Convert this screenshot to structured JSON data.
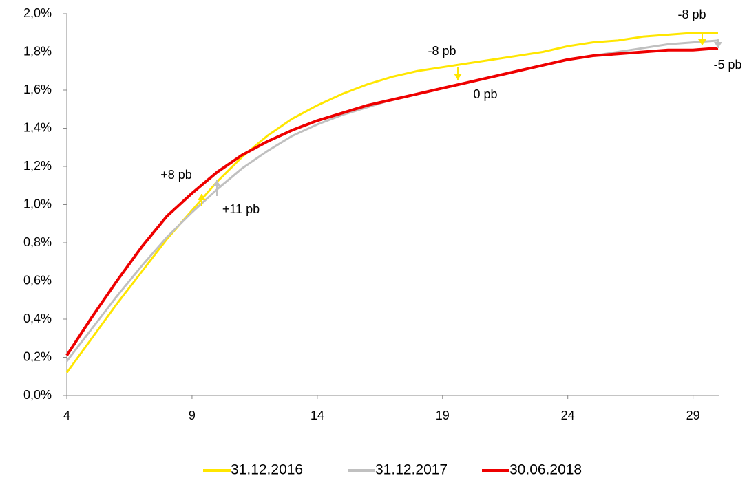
{
  "chart_data": {
    "type": "line",
    "x": [
      4,
      5,
      6,
      7,
      8,
      9,
      10,
      11,
      12,
      13,
      14,
      15,
      16,
      17,
      18,
      19,
      20,
      21,
      22,
      23,
      24,
      25,
      26,
      27,
      28,
      29,
      30
    ],
    "series": [
      {
        "name": "31.12.2016",
        "color": "#ffe600",
        "values": [
          0.12,
          0.3,
          0.48,
          0.65,
          0.82,
          0.97,
          1.12,
          1.25,
          1.36,
          1.45,
          1.52,
          1.58,
          1.63,
          1.67,
          1.7,
          1.72,
          1.74,
          1.76,
          1.78,
          1.8,
          1.83,
          1.85,
          1.86,
          1.88,
          1.89,
          1.9,
          1.9
        ]
      },
      {
        "name": "31.12.2017",
        "color": "#c0c0c0",
        "values": [
          0.18,
          0.35,
          0.52,
          0.68,
          0.83,
          0.96,
          1.08,
          1.19,
          1.28,
          1.36,
          1.42,
          1.47,
          1.51,
          1.55,
          1.58,
          1.61,
          1.64,
          1.67,
          1.7,
          1.73,
          1.76,
          1.78,
          1.8,
          1.82,
          1.84,
          1.85,
          1.86
        ]
      },
      {
        "name": "30.06.2018",
        "color": "#ee0000",
        "values": [
          0.21,
          0.41,
          0.6,
          0.78,
          0.94,
          1.06,
          1.17,
          1.26,
          1.33,
          1.39,
          1.44,
          1.48,
          1.52,
          1.55,
          1.58,
          1.61,
          1.64,
          1.67,
          1.7,
          1.73,
          1.76,
          1.78,
          1.79,
          1.8,
          1.81,
          1.81,
          1.82
        ]
      }
    ],
    "xlim": [
      4,
      30
    ],
    "xticks": [
      4,
      9,
      14,
      19,
      24,
      29
    ],
    "ylim": [
      0,
      2.0
    ],
    "yticks": [
      {
        "value": 0,
        "label": "0,0%"
      },
      {
        "value": 0.2,
        "label": "0,2%"
      },
      {
        "value": 0.4,
        "label": "0,4%"
      },
      {
        "value": 0.6,
        "label": "0,6%"
      },
      {
        "value": 0.8,
        "label": "0,8%"
      },
      {
        "value": 1.0,
        "label": "1,0%"
      },
      {
        "value": 1.2,
        "label": "1,2%"
      },
      {
        "value": 1.4,
        "label": "1,4%"
      },
      {
        "value": 1.6,
        "label": "1,6%"
      },
      {
        "value": 1.8,
        "label": "1,8%"
      },
      {
        "value": 2.0,
        "label": "2,0%"
      }
    ],
    "annotations": [
      "-8 pb",
      "-8 pb",
      "-5 pb",
      "0 pb",
      "+8 pb",
      "+11 pb"
    ],
    "legend": "bottom"
  }
}
